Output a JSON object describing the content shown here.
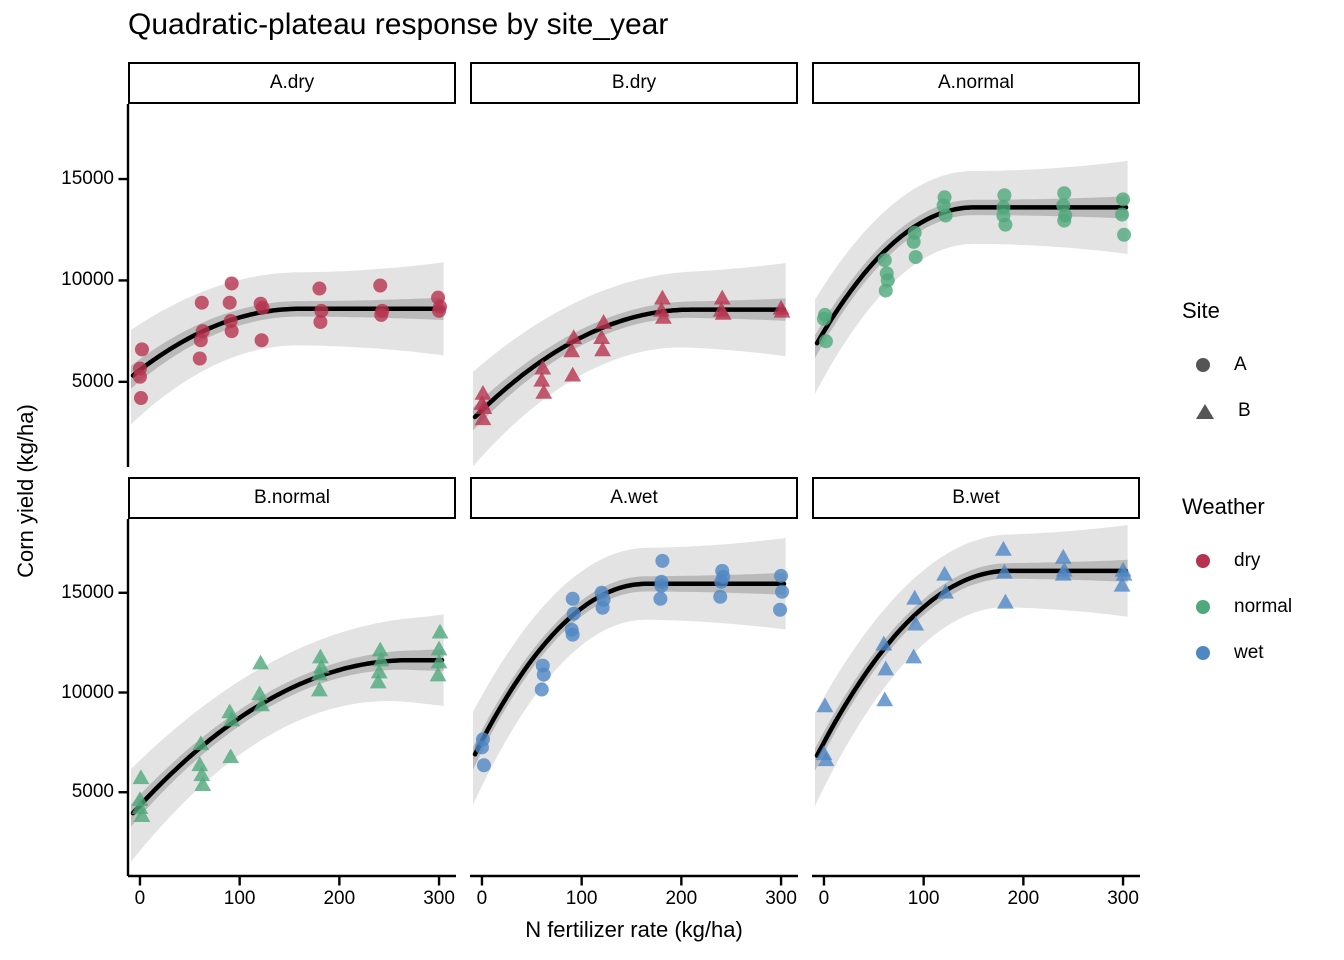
{
  "title": "Quadratic-plateau response by site_year",
  "axes": {
    "x_title": "N fertilizer rate (kg/ha)",
    "y_title": "Corn yield (kg/ha)",
    "x_ticks": [
      0,
      100,
      200,
      300
    ],
    "y_ticks": [
      5000,
      10000,
      15000
    ],
    "x_domain": [
      -12,
      317
    ],
    "y_domain": [
      800,
      18700
    ]
  },
  "legend": {
    "site": {
      "title": "Site",
      "key_color": "#555555",
      "items": [
        {
          "label": "A",
          "shape": "circle"
        },
        {
          "label": "B",
          "shape": "triangle"
        }
      ]
    },
    "weather": {
      "title": "Weather",
      "items": [
        {
          "label": "dry",
          "color": "#B6334F"
        },
        {
          "label": "normal",
          "color": "#4FA97B"
        },
        {
          "label": "wet",
          "color": "#4F87C3"
        }
      ]
    }
  },
  "chart_data": {
    "type": "scatter",
    "title": "Quadratic-plateau response by site_year",
    "xlabel": "N fertilizer rate (kg/ha)",
    "ylabel": "Corn yield (kg/ha)",
    "x_range": [
      0,
      300
    ],
    "y_tick_range": [
      5000,
      15000
    ],
    "grid": false,
    "style": {
      "curve_color": "#000000",
      "curve_width": 4.5,
      "ribbon_outer_opacity": 0.11,
      "ribbon_inner_opacity": 0.18,
      "point_opacity": 0.8,
      "panel_background": "#FFFFFF"
    },
    "ribbon": {
      "inner_halfwidth_base": 380,
      "inner_halfwidth_flare": 180,
      "outer_halfwidth_base": 1800,
      "outer_halfwidth_flare": 520
    },
    "facets": [
      {
        "label": "A.dry",
        "site": "A",
        "weather": "dry",
        "shape": "circle",
        "color": "#B6334F",
        "fit": {
          "y0": 5580,
          "plateau": 8600,
          "x_critical": 160
        },
        "points": [
          [
            2,
            6600
          ],
          [
            0,
            5650
          ],
          [
            0,
            5250
          ],
          [
            1,
            4200
          ],
          [
            62,
            8900
          ],
          [
            63,
            7500
          ],
          [
            61,
            7050
          ],
          [
            60,
            6150
          ],
          [
            92,
            9850
          ],
          [
            90,
            8900
          ],
          [
            91,
            8000
          ],
          [
            92,
            7500
          ],
          [
            121,
            8850
          ],
          [
            123,
            8650
          ],
          [
            122,
            7050
          ],
          [
            180,
            9600
          ],
          [
            182,
            8500
          ],
          [
            181,
            7950
          ],
          [
            241,
            9750
          ],
          [
            243,
            8500
          ],
          [
            242,
            8300
          ],
          [
            299,
            9150
          ],
          [
            301,
            8700
          ],
          [
            300,
            8500
          ]
        ]
      },
      {
        "label": "B.dry",
        "site": "B",
        "weather": "dry",
        "shape": "triangle",
        "color": "#B6334F",
        "fit": {
          "y0": 3600,
          "plateau": 8560,
          "x_critical": 210
        },
        "points": [
          [
            1,
            4400
          ],
          [
            0,
            3900
          ],
          [
            2,
            3700
          ],
          [
            1,
            3150
          ],
          [
            61,
            5650
          ],
          [
            60,
            5050
          ],
          [
            62,
            4450
          ],
          [
            92,
            7150
          ],
          [
            90,
            6500
          ],
          [
            91,
            5300
          ],
          [
            122,
            7900
          ],
          [
            120,
            7150
          ],
          [
            121,
            6550
          ],
          [
            181,
            9100
          ],
          [
            180,
            8500
          ],
          [
            182,
            8150
          ],
          [
            241,
            9100
          ],
          [
            240,
            8500
          ],
          [
            242,
            8350
          ],
          [
            300,
            8600
          ],
          [
            301,
            8450
          ]
        ]
      },
      {
        "label": "A.normal",
        "site": "A",
        "weather": "normal",
        "shape": "circle",
        "color": "#4FA97B",
        "fit": {
          "y0": 7490,
          "plateau": 13600,
          "x_critical": 150
        },
        "points": [
          [
            1,
            8300
          ],
          [
            0,
            8100
          ],
          [
            2,
            7000
          ],
          [
            61,
            11000
          ],
          [
            63,
            10350
          ],
          [
            64,
            10000
          ],
          [
            62,
            9500
          ],
          [
            91,
            12350
          ],
          [
            90,
            11900
          ],
          [
            92,
            11150
          ],
          [
            121,
            14100
          ],
          [
            120,
            13700
          ],
          [
            122,
            13200
          ],
          [
            181,
            14200
          ],
          [
            180,
            13600
          ],
          [
            180,
            13200
          ],
          [
            182,
            12750
          ],
          [
            241,
            14300
          ],
          [
            240,
            13700
          ],
          [
            242,
            13200
          ],
          [
            241,
            12950
          ],
          [
            300,
            14000
          ],
          [
            299,
            13250
          ],
          [
            301,
            12250
          ]
        ]
      },
      {
        "label": "B.normal",
        "site": "B",
        "weather": "normal",
        "shape": "triangle",
        "color": "#4FA97B",
        "fit": {
          "y0": 4335,
          "plateau": 11620,
          "x_critical": 270
        },
        "points": [
          [
            1,
            5700
          ],
          [
            0,
            4600
          ],
          [
            0,
            4200
          ],
          [
            2,
            3800
          ],
          [
            61,
            7400
          ],
          [
            60,
            6350
          ],
          [
            62,
            5850
          ],
          [
            63,
            5350
          ],
          [
            90,
            9000
          ],
          [
            92,
            8600
          ],
          [
            91,
            6750
          ],
          [
            121,
            11450
          ],
          [
            120,
            9900
          ],
          [
            122,
            9350
          ],
          [
            181,
            11750
          ],
          [
            182,
            11250
          ],
          [
            180,
            10900
          ],
          [
            180,
            10100
          ],
          [
            241,
            12100
          ],
          [
            242,
            11600
          ],
          [
            240,
            11000
          ],
          [
            239,
            10500
          ],
          [
            301,
            13000
          ],
          [
            300,
            12150
          ],
          [
            300,
            11500
          ],
          [
            299,
            10850
          ]
        ]
      },
      {
        "label": "A.wet",
        "site": "A",
        "weather": "wet",
        "shape": "circle",
        "color": "#4F87C3",
        "fit": {
          "y0": 7585,
          "plateau": 15450,
          "x_critical": 165
        },
        "points": [
          [
            1,
            7650
          ],
          [
            0,
            7250
          ],
          [
            2,
            6350
          ],
          [
            61,
            11350
          ],
          [
            62,
            10900
          ],
          [
            60,
            10150
          ],
          [
            91,
            14700
          ],
          [
            92,
            13950
          ],
          [
            90,
            13150
          ],
          [
            91,
            12900
          ],
          [
            120,
            15000
          ],
          [
            122,
            14650
          ],
          [
            121,
            14250
          ],
          [
            181,
            16600
          ],
          [
            180,
            15550
          ],
          [
            180,
            15350
          ],
          [
            179,
            14700
          ],
          [
            241,
            16100
          ],
          [
            242,
            15800
          ],
          [
            240,
            15550
          ],
          [
            239,
            14800
          ],
          [
            300,
            15850
          ],
          [
            301,
            15050
          ],
          [
            299,
            14150
          ]
        ]
      },
      {
        "label": "B.wet",
        "site": "B",
        "weather": "wet",
        "shape": "triangle",
        "color": "#4F87C3",
        "fit": {
          "y0": 7500,
          "plateau": 16100,
          "x_critical": 185
        },
        "points": [
          [
            1,
            9300
          ],
          [
            0,
            6900
          ],
          [
            2,
            6600
          ],
          [
            60,
            12400
          ],
          [
            62,
            11150
          ],
          [
            61,
            9600
          ],
          [
            91,
            14700
          ],
          [
            92,
            13400
          ],
          [
            90,
            11750
          ],
          [
            121,
            15900
          ],
          [
            122,
            15000
          ],
          [
            180,
            17150
          ],
          [
            181,
            16000
          ],
          [
            182,
            14500
          ],
          [
            240,
            16750
          ],
          [
            241,
            16100
          ],
          [
            240,
            15900
          ],
          [
            300,
            16100
          ],
          [
            301,
            15900
          ],
          [
            299,
            15350
          ]
        ]
      }
    ]
  }
}
